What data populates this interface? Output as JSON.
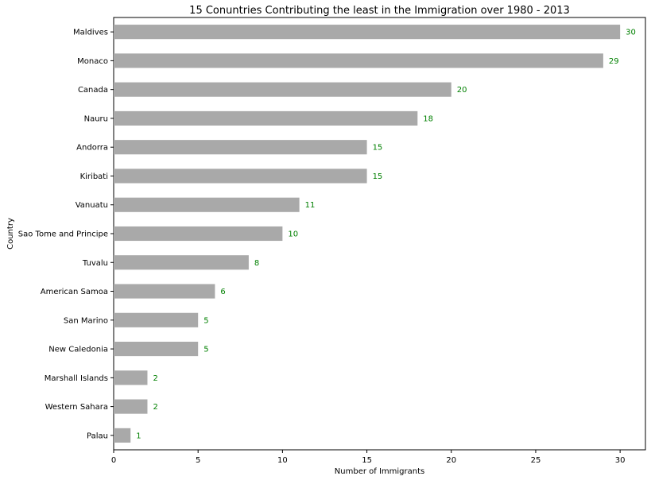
{
  "chart_data": {
    "type": "bar",
    "orientation": "horizontal",
    "title": "15 Conuntries Contributing the least in the Immigration over 1980 - 2013",
    "xlabel": "Number of Immigrants",
    "ylabel": "Country",
    "categories": [
      "Maldives",
      "Monaco",
      "Canada",
      "Nauru",
      "Andorra",
      "Kiribati",
      "Vanuatu",
      "Sao Tome and Principe",
      "Tuvalu",
      "American Samoa",
      "San Marino",
      "New Caledonia",
      "Marshall Islands",
      "Western Sahara",
      "Palau"
    ],
    "values": [
      30,
      29,
      20,
      18,
      15,
      15,
      11,
      10,
      8,
      6,
      5,
      5,
      2,
      2,
      1
    ],
    "data_labels": [
      "30",
      "29",
      "20",
      "18",
      "15",
      "15",
      "11",
      "10",
      "8",
      "6",
      "5",
      "5",
      "2",
      "2",
      "1"
    ],
    "xlim": [
      0,
      31.5
    ],
    "xticks": [
      0,
      5,
      10,
      15,
      20,
      25,
      30
    ],
    "xtick_labels": [
      "0",
      "5",
      "10",
      "15",
      "20",
      "25",
      "30"
    ],
    "grid": false,
    "bar_color": "#a9a9a9",
    "label_color": "#008000",
    "axis_color": "#000000"
  }
}
